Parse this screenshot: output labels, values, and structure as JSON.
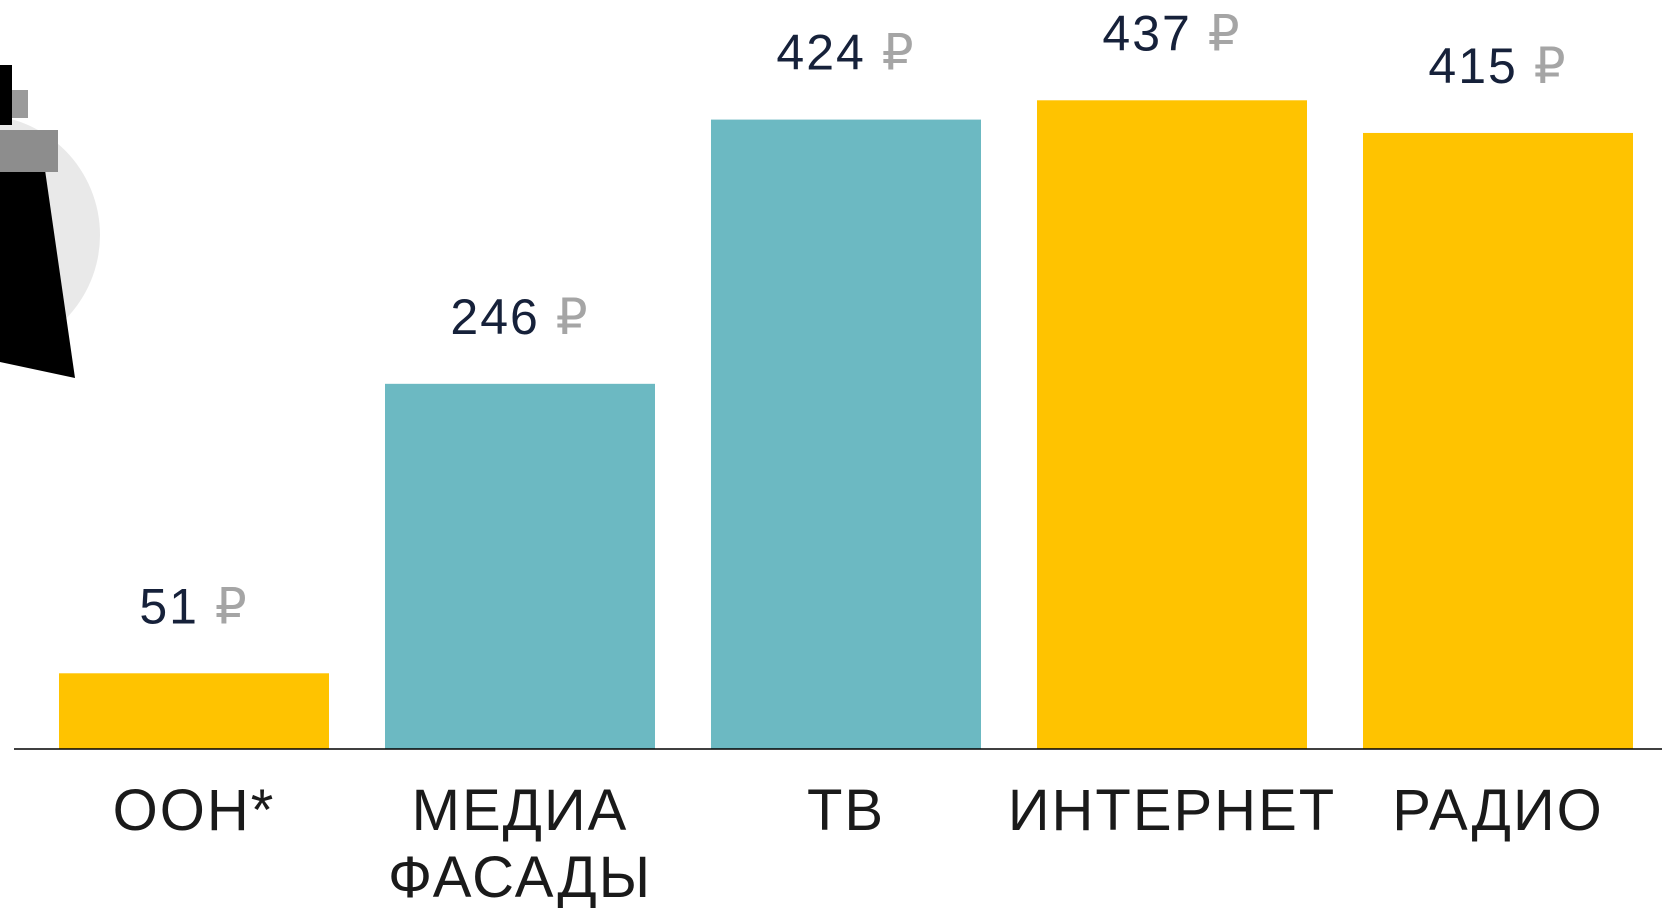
{
  "chart_data": {
    "type": "bar",
    "categories": [
      "ООН*",
      "МЕДИА ФАСАДЫ",
      "ТВ",
      "ИНТЕРНЕТ",
      "РАДИО"
    ],
    "values": [
      51,
      246,
      424,
      437,
      415
    ],
    "value_labels": [
      "51 ₽",
      "246 ₽",
      "424 ₽",
      "437 ₽",
      "415 ₽"
    ],
    "colors": [
      "#ffc300",
      "#6cb9c2",
      "#6cb9c2",
      "#ffc300",
      "#ffc300"
    ],
    "ylim": [
      0,
      450
    ]
  }
}
